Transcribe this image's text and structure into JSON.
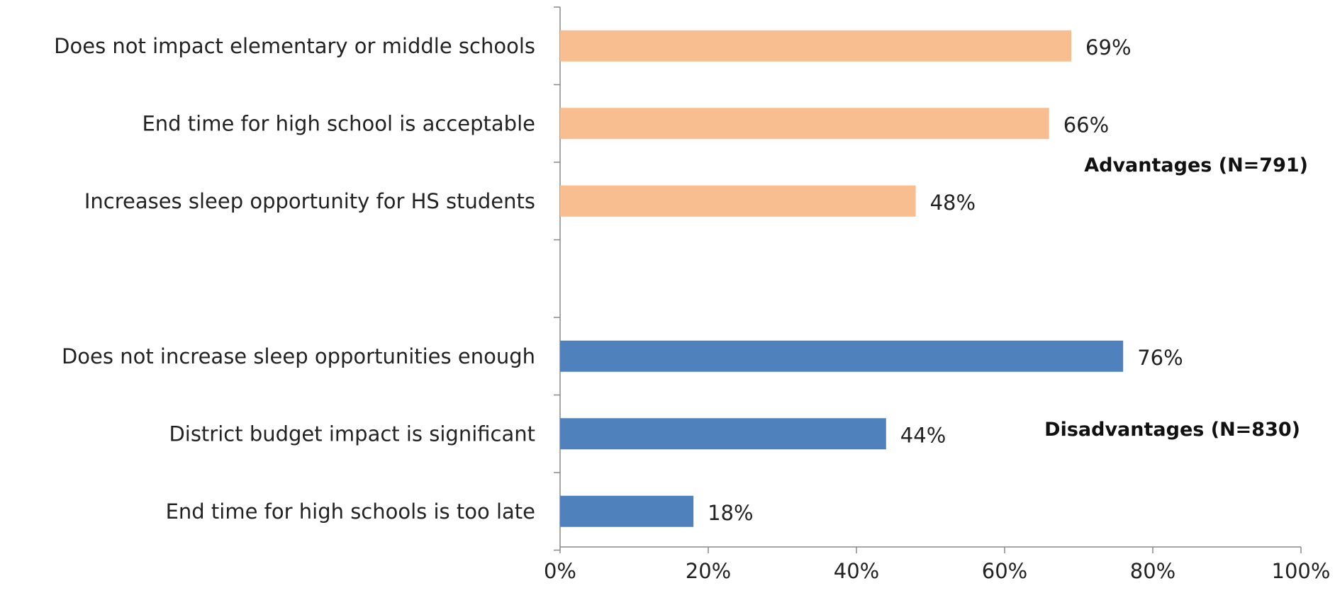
{
  "chart_data": {
    "type": "bar",
    "orientation": "horizontal",
    "title": "",
    "xlabel": "",
    "ylabel": "",
    "xlim": [
      0,
      100
    ],
    "x_ticks": [
      "0%",
      "20%",
      "40%",
      "60%",
      "80%",
      "100%"
    ],
    "grid": false,
    "groups": [
      {
        "name": "Advantages (N=791)",
        "color": "#F9BE8F",
        "categories": [
          "Does not impact elementary or middle schools",
          "End time for high school is acceptable",
          "Increases sleep opportunity for HS students"
        ],
        "values": [
          69,
          66,
          48
        ],
        "labels": [
          "69%",
          "66%",
          "48%"
        ]
      },
      {
        "name": "Disadvantages (N=830)",
        "color": "#4F81BD",
        "categories": [
          "Does not increase sleep opportunities enough",
          "District budget impact is significant",
          "End time for high schools is too late"
        ],
        "values": [
          76,
          44,
          18
        ],
        "labels": [
          "76%",
          "44%",
          "18%"
        ]
      }
    ]
  }
}
